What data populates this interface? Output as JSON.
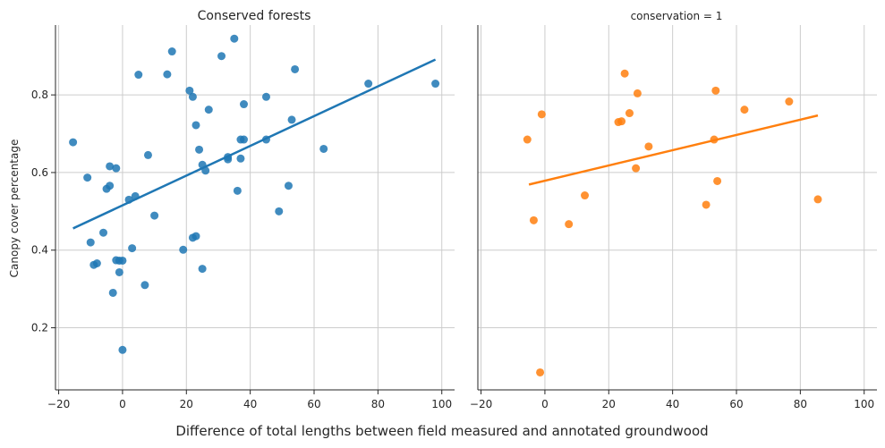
{
  "figure": {
    "xlabel": "Difference of total lengths between field measured and annotated groundwood",
    "ylabel": "Canopy cover percentage",
    "xlim": [
      -21,
      104
    ],
    "ylim": [
      0.04,
      0.98
    ],
    "xticks": [
      -20,
      0,
      20,
      40,
      60,
      80,
      100
    ],
    "xtick_labels": [
      "−20",
      "0",
      "20",
      "40",
      "60",
      "80",
      "100"
    ],
    "yticks": [
      0.2,
      0.4,
      0.6,
      0.8
    ],
    "ytick_labels": [
      "0.2",
      "0.4",
      "0.6",
      "0.8"
    ],
    "grid": true
  },
  "chart_data": [
    {
      "type": "scatter",
      "title": "Conserved forests",
      "color": "#1f77b4",
      "regression": {
        "x": [
          -15.5,
          98
        ],
        "y": [
          0.456,
          0.891
        ]
      },
      "x": [
        -15.5,
        -11,
        -10,
        -9,
        -8,
        -6,
        -5,
        -4,
        -4,
        -3,
        -2,
        -2,
        -1,
        -1,
        0,
        0,
        2,
        3,
        4,
        5,
        7,
        8,
        10,
        14,
        15.5,
        19,
        21,
        22,
        22,
        23,
        23,
        24,
        25,
        25,
        26,
        27,
        31,
        33,
        33,
        35,
        36,
        37,
        37,
        38,
        38,
        45,
        45,
        49,
        52,
        53,
        54,
        63,
        77,
        98
      ],
      "y": [
        0.678,
        0.587,
        0.42,
        0.362,
        0.366,
        0.445,
        0.558,
        0.616,
        0.566,
        0.29,
        0.374,
        0.611,
        0.343,
        0.373,
        0.143,
        0.373,
        0.53,
        0.405,
        0.539,
        0.852,
        0.31,
        0.645,
        0.489,
        0.853,
        0.912,
        0.401,
        0.811,
        0.432,
        0.795,
        0.436,
        0.722,
        0.659,
        0.352,
        0.62,
        0.605,
        0.762,
        0.9,
        0.634,
        0.64,
        0.945,
        0.553,
        0.636,
        0.685,
        0.685,
        0.776,
        0.685,
        0.795,
        0.5,
        0.566,
        0.736,
        0.866,
        0.661,
        0.829,
        0.829
      ]
    },
    {
      "type": "scatter",
      "title": "conservation = 1",
      "color": "#ff7f0e",
      "regression": {
        "x": [
          -5,
          85.5
        ],
        "y": [
          0.569,
          0.747
        ]
      },
      "x": [
        -5.5,
        -3.5,
        -1.5,
        -1,
        7.5,
        12.5,
        23,
        24,
        25,
        26.5,
        28.5,
        29,
        32.5,
        50.5,
        53,
        53.5,
        54,
        62.5,
        76.5,
        85.5
      ],
      "y": [
        0.685,
        0.477,
        0.085,
        0.75,
        0.467,
        0.541,
        0.73,
        0.732,
        0.855,
        0.753,
        0.611,
        0.804,
        0.667,
        0.517,
        0.685,
        0.811,
        0.578,
        0.762,
        0.783,
        0.531
      ]
    }
  ]
}
